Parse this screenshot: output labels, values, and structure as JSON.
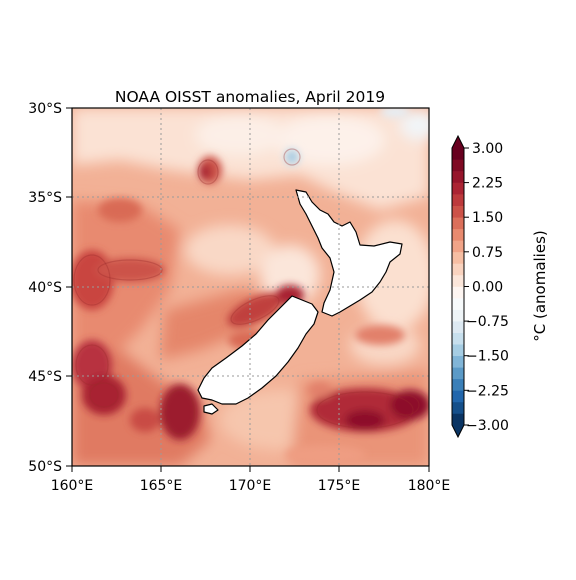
{
  "title": "NOAA OISST anomalies, April 2019",
  "lat_labels": [
    "30°S",
    "35°S",
    "40°S",
    "45°S",
    "50°S"
  ],
  "lon_labels": [
    "160°E",
    "165°E",
    "170°E",
    "175°E",
    "180°E"
  ],
  "colorbar": {
    "label": "°C (anomalies)",
    "tick_labels": [
      "3.00",
      "2.25",
      "1.50",
      "0.75",
      "0.00",
      "−0.75",
      "−1.50",
      "−2.25",
      "−3.00"
    ],
    "levels": [
      -3.0,
      -2.75,
      -2.5,
      -2.25,
      -2.0,
      -1.75,
      -1.5,
      -1.25,
      -1.0,
      -0.75,
      -0.5,
      -0.25,
      0.0,
      0.25,
      0.5,
      0.75,
      1.0,
      1.25,
      1.5,
      1.75,
      2.0,
      2.25,
      2.5,
      2.75,
      3.0
    ],
    "colors": [
      "#0a3463",
      "#154f8a",
      "#2166ac",
      "#3a7fb8",
      "#5b9ac7",
      "#81b5d7",
      "#a6cde3",
      "#c7dfed",
      "#dde9f2",
      "#eef4f7",
      "#f7fafb",
      "#fdf5f1",
      "#fbe6da",
      "#f9d3bf",
      "#f6bea3",
      "#f1a488",
      "#e88a6f",
      "#db6f5a",
      "#cc5248",
      "#bd3a3c",
      "#ab2433",
      "#96152b",
      "#7f0a23",
      "#67001f"
    ]
  },
  "map": {
    "type": "filled-contour",
    "lon_range": [
      160,
      180
    ],
    "lat_range": [
      -50,
      -30
    ],
    "grid": true,
    "data_units": "°C",
    "anomaly_regions": [
      {
        "lon": 161.5,
        "lat": -38.5,
        "value": 2.3
      },
      {
        "lon": 161.0,
        "lat": -43.0,
        "value": 2.6
      },
      {
        "lon": 162.0,
        "lat": -45.5,
        "value": 2.5
      },
      {
        "lon": 166.0,
        "lat": -47.0,
        "value": 2.6
      },
      {
        "lon": 168.0,
        "lat": -41.5,
        "value": 2.3
      },
      {
        "lon": 167.5,
        "lat": -33.5,
        "value": 2.0
      },
      {
        "lon": 177.0,
        "lat": -47.0,
        "value": 2.7
      },
      {
        "lon": 172.3,
        "lat": -32.8,
        "value": -1.0
      }
    ]
  }
}
